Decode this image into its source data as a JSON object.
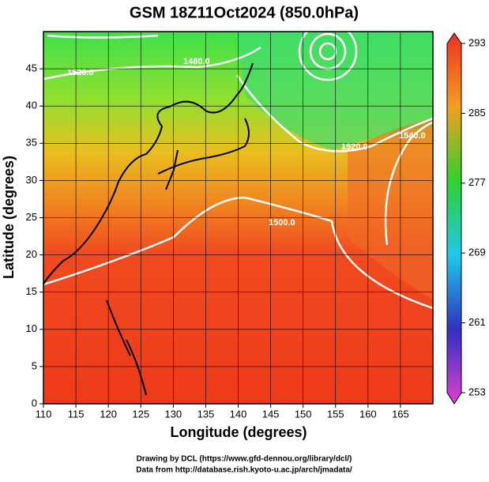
{
  "chart_data": {
    "type": "map",
    "title": "GSM 18Z11Oct2024 (850.0hPa)",
    "x_label": "Longitude (degrees)",
    "y_label": "Latitude  (degrees)",
    "xlim": [
      110,
      170
    ],
    "ylim": [
      0,
      50
    ],
    "xticks": [
      110,
      115,
      120,
      125,
      130,
      135,
      140,
      145,
      150,
      155,
      160,
      165
    ],
    "yticks": [
      0,
      5,
      10,
      15,
      20,
      25,
      30,
      35,
      40,
      45
    ],
    "colorbar_lim": [
      253,
      293
    ],
    "colorbar_ticks": [
      253,
      261,
      269,
      277,
      285,
      293
    ],
    "annotations": [
      "1480.0",
      "1520.0",
      "1500.0",
      "1520.0",
      "1540.0"
    ],
    "credits": [
      "Drawing by DCL (https://www.gfd-dennou.org/library/dcl/)",
      "Data from http://database.rish.kyoto-u.ac.jp/arch/jmadata/"
    ]
  }
}
